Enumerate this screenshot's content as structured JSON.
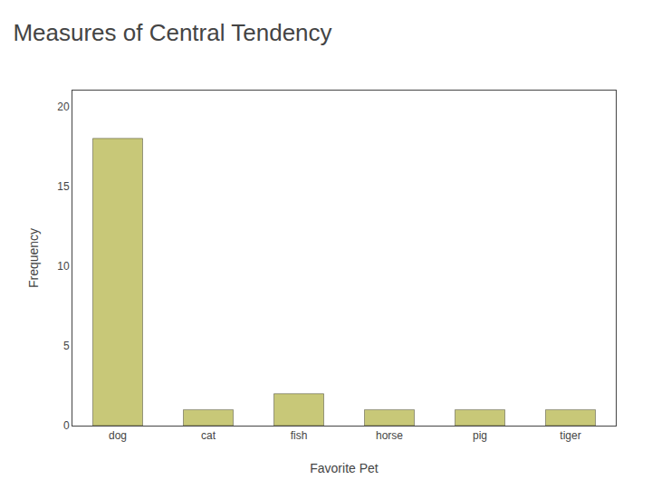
{
  "chart_data": {
    "type": "bar",
    "title": "Measures of Central Tendency",
    "categories": [
      "dog",
      "cat",
      "fish",
      "horse",
      "pig",
      "tiger"
    ],
    "values": [
      18,
      1,
      2,
      1,
      1,
      1
    ],
    "color": "#c8c878",
    "xlabel": "Favorite Pet",
    "ylabel": "Frequency",
    "ylim": [
      0,
      21
    ],
    "yticks": [
      0,
      5,
      10,
      15,
      20
    ],
    "grid": false
  }
}
